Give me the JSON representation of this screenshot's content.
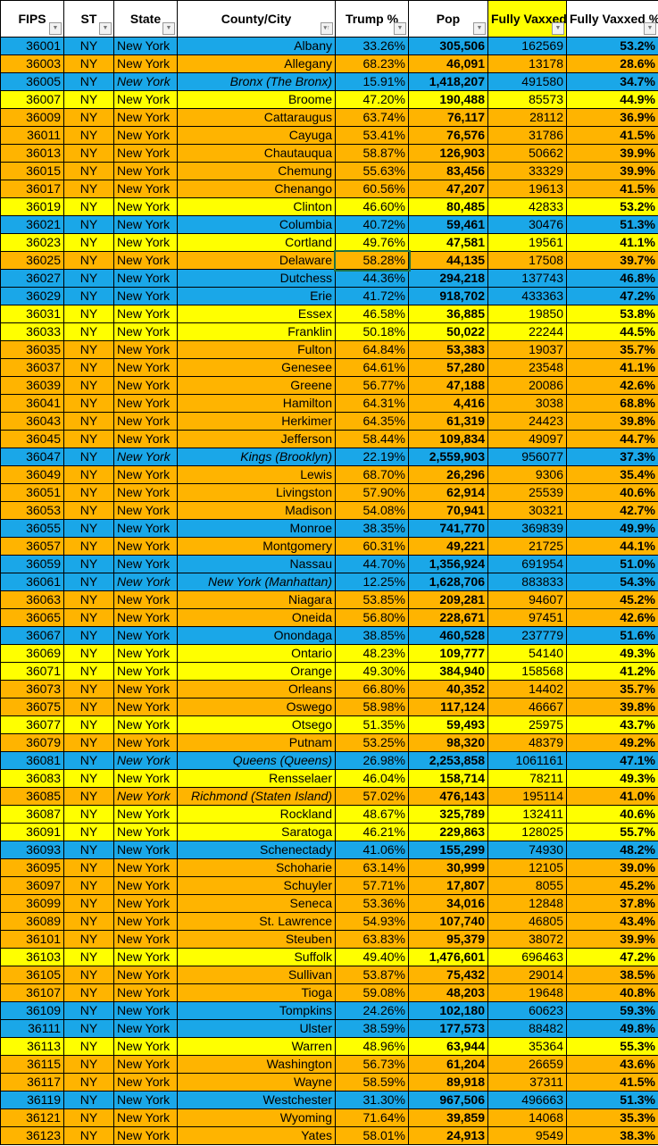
{
  "colors": {
    "b": "#1aa7e8",
    "y": "#ffff00",
    "o": "#ffb400"
  },
  "headers": [
    {
      "label": "FIPS",
      "icon": "filter-dropdown-icon"
    },
    {
      "label": "ST",
      "icon": "filter-dropdown-icon"
    },
    {
      "label": "State",
      "icon": "filter-dropdown-icon"
    },
    {
      "label": "County/City",
      "icon": "sort-ascending-icon"
    },
    {
      "label": "Trump %",
      "icon": "filter-dropdown-icon"
    },
    {
      "label": "Pop",
      "icon": "filter-dropdown-icon"
    },
    {
      "label": "Fully Vaxxed",
      "icon": "filter-dropdown-icon",
      "highlight": true
    },
    {
      "label": "Fully Vaxxed %",
      "icon": "filter-dropdown-icon"
    }
  ],
  "rows": [
    [
      "36001",
      "NY",
      "New York",
      "Albany",
      "33.26%",
      "305,506",
      "162569",
      "53.2%",
      "b",
      false
    ],
    [
      "36003",
      "NY",
      "New York",
      "Allegany",
      "68.23%",
      "46,091",
      "13178",
      "28.6%",
      "o",
      false
    ],
    [
      "36005",
      "NY",
      "New York",
      "Bronx  (The Bronx)",
      "15.91%",
      "1,418,207",
      "491580",
      "34.7%",
      "b",
      true
    ],
    [
      "36007",
      "NY",
      "New York",
      "Broome",
      "47.20%",
      "190,488",
      "85573",
      "44.9%",
      "y",
      false
    ],
    [
      "36009",
      "NY",
      "New York",
      "Cattaraugus",
      "63.74%",
      "76,117",
      "28112",
      "36.9%",
      "o",
      false
    ],
    [
      "36011",
      "NY",
      "New York",
      "Cayuga",
      "53.41%",
      "76,576",
      "31786",
      "41.5%",
      "o",
      false
    ],
    [
      "36013",
      "NY",
      "New York",
      "Chautauqua",
      "58.87%",
      "126,903",
      "50662",
      "39.9%",
      "o",
      false
    ],
    [
      "36015",
      "NY",
      "New York",
      "Chemung",
      "55.63%",
      "83,456",
      "33329",
      "39.9%",
      "o",
      false
    ],
    [
      "36017",
      "NY",
      "New York",
      "Chenango",
      "60.56%",
      "47,207",
      "19613",
      "41.5%",
      "o",
      false
    ],
    [
      "36019",
      "NY",
      "New York",
      "Clinton",
      "46.60%",
      "80,485",
      "42833",
      "53.2%",
      "y",
      false
    ],
    [
      "36021",
      "NY",
      "New York",
      "Columbia",
      "40.72%",
      "59,461",
      "30476",
      "51.3%",
      "b",
      false
    ],
    [
      "36023",
      "NY",
      "New York",
      "Cortland",
      "49.76%",
      "47,581",
      "19561",
      "41.1%",
      "y",
      false
    ],
    [
      "36025",
      "NY",
      "New York",
      "Delaware",
      "58.28%",
      "44,135",
      "17508",
      "39.7%",
      "o",
      false
    ],
    [
      "36027",
      "NY",
      "New York",
      "Dutchess",
      "44.36%",
      "294,218",
      "137743",
      "46.8%",
      "b",
      false
    ],
    [
      "36029",
      "NY",
      "New York",
      "Erie",
      "41.72%",
      "918,702",
      "433363",
      "47.2%",
      "b",
      false
    ],
    [
      "36031",
      "NY",
      "New York",
      "Essex",
      "46.58%",
      "36,885",
      "19850",
      "53.8%",
      "y",
      false
    ],
    [
      "36033",
      "NY",
      "New York",
      "Franklin",
      "50.18%",
      "50,022",
      "22244",
      "44.5%",
      "y",
      false
    ],
    [
      "36035",
      "NY",
      "New York",
      "Fulton",
      "64.84%",
      "53,383",
      "19037",
      "35.7%",
      "o",
      false
    ],
    [
      "36037",
      "NY",
      "New York",
      "Genesee",
      "64.61%",
      "57,280",
      "23548",
      "41.1%",
      "o",
      false
    ],
    [
      "36039",
      "NY",
      "New York",
      "Greene",
      "56.77%",
      "47,188",
      "20086",
      "42.6%",
      "o",
      false
    ],
    [
      "36041",
      "NY",
      "New York",
      "Hamilton",
      "64.31%",
      "4,416",
      "3038",
      "68.8%",
      "o",
      false
    ],
    [
      "36043",
      "NY",
      "New York",
      "Herkimer",
      "64.35%",
      "61,319",
      "24423",
      "39.8%",
      "o",
      false
    ],
    [
      "36045",
      "NY",
      "New York",
      "Jefferson",
      "58.44%",
      "109,834",
      "49097",
      "44.7%",
      "o",
      false
    ],
    [
      "36047",
      "NY",
      "New York",
      "Kings  (Brooklyn)",
      "22.19%",
      "2,559,903",
      "956077",
      "37.3%",
      "b",
      true
    ],
    [
      "36049",
      "NY",
      "New York",
      "Lewis",
      "68.70%",
      "26,296",
      "9306",
      "35.4%",
      "o",
      false
    ],
    [
      "36051",
      "NY",
      "New York",
      "Livingston",
      "57.90%",
      "62,914",
      "25539",
      "40.6%",
      "o",
      false
    ],
    [
      "36053",
      "NY",
      "New York",
      "Madison",
      "54.08%",
      "70,941",
      "30321",
      "42.7%",
      "o",
      false
    ],
    [
      "36055",
      "NY",
      "New York",
      "Monroe",
      "38.35%",
      "741,770",
      "369839",
      "49.9%",
      "b",
      false
    ],
    [
      "36057",
      "NY",
      "New York",
      "Montgomery",
      "60.31%",
      "49,221",
      "21725",
      "44.1%",
      "o",
      false
    ],
    [
      "36059",
      "NY",
      "New York",
      "Nassau",
      "44.70%",
      "1,356,924",
      "691954",
      "51.0%",
      "b",
      false
    ],
    [
      "36061",
      "NY",
      "New York",
      "New York  (Manhattan)",
      "12.25%",
      "1,628,706",
      "883833",
      "54.3%",
      "b",
      true
    ],
    [
      "36063",
      "NY",
      "New York",
      "Niagara",
      "53.85%",
      "209,281",
      "94607",
      "45.2%",
      "o",
      false
    ],
    [
      "36065",
      "NY",
      "New York",
      "Oneida",
      "56.80%",
      "228,671",
      "97451",
      "42.6%",
      "o",
      false
    ],
    [
      "36067",
      "NY",
      "New York",
      "Onondaga",
      "38.85%",
      "460,528",
      "237779",
      "51.6%",
      "b",
      false
    ],
    [
      "36069",
      "NY",
      "New York",
      "Ontario",
      "48.23%",
      "109,777",
      "54140",
      "49.3%",
      "y",
      false
    ],
    [
      "36071",
      "NY",
      "New York",
      "Orange",
      "49.30%",
      "384,940",
      "158568",
      "41.2%",
      "y",
      false
    ],
    [
      "36073",
      "NY",
      "New York",
      "Orleans",
      "66.80%",
      "40,352",
      "14402",
      "35.7%",
      "o",
      false
    ],
    [
      "36075",
      "NY",
      "New York",
      "Oswego",
      "58.98%",
      "117,124",
      "46667",
      "39.8%",
      "o",
      false
    ],
    [
      "36077",
      "NY",
      "New York",
      "Otsego",
      "51.35%",
      "59,493",
      "25975",
      "43.7%",
      "y",
      false
    ],
    [
      "36079",
      "NY",
      "New York",
      "Putnam",
      "53.25%",
      "98,320",
      "48379",
      "49.2%",
      "o",
      false
    ],
    [
      "36081",
      "NY",
      "New York",
      "Queens  (Queens)",
      "26.98%",
      "2,253,858",
      "1061161",
      "47.1%",
      "b",
      true
    ],
    [
      "36083",
      "NY",
      "New York",
      "Rensselaer",
      "46.04%",
      "158,714",
      "78211",
      "49.3%",
      "y",
      false
    ],
    [
      "36085",
      "NY",
      "New York",
      "Richmond  (Staten Island)",
      "57.02%",
      "476,143",
      "195114",
      "41.0%",
      "o",
      true
    ],
    [
      "36087",
      "NY",
      "New York",
      "Rockland",
      "48.67%",
      "325,789",
      "132411",
      "40.6%",
      "y",
      false
    ],
    [
      "36091",
      "NY",
      "New York",
      "Saratoga",
      "46.21%",
      "229,863",
      "128025",
      "55.7%",
      "y",
      false
    ],
    [
      "36093",
      "NY",
      "New York",
      "Schenectady",
      "41.06%",
      "155,299",
      "74930",
      "48.2%",
      "b",
      false
    ],
    [
      "36095",
      "NY",
      "New York",
      "Schoharie",
      "63.14%",
      "30,999",
      "12105",
      "39.0%",
      "o",
      false
    ],
    [
      "36097",
      "NY",
      "New York",
      "Schuyler",
      "57.71%",
      "17,807",
      "8055",
      "45.2%",
      "o",
      false
    ],
    [
      "36099",
      "NY",
      "New York",
      "Seneca",
      "53.36%",
      "34,016",
      "12848",
      "37.8%",
      "o",
      false
    ],
    [
      "36089",
      "NY",
      "New York",
      "St. Lawrence",
      "54.93%",
      "107,740",
      "46805",
      "43.4%",
      "o",
      false
    ],
    [
      "36101",
      "NY",
      "New York",
      "Steuben",
      "63.83%",
      "95,379",
      "38072",
      "39.9%",
      "o",
      false
    ],
    [
      "36103",
      "NY",
      "New York",
      "Suffolk",
      "49.40%",
      "1,476,601",
      "696463",
      "47.2%",
      "y",
      false
    ],
    [
      "36105",
      "NY",
      "New York",
      "Sullivan",
      "53.87%",
      "75,432",
      "29014",
      "38.5%",
      "o",
      false
    ],
    [
      "36107",
      "NY",
      "New York",
      "Tioga",
      "59.08%",
      "48,203",
      "19648",
      "40.8%",
      "o",
      false
    ],
    [
      "36109",
      "NY",
      "New York",
      "Tompkins",
      "24.26%",
      "102,180",
      "60623",
      "59.3%",
      "b",
      false
    ],
    [
      "36111",
      "NY",
      "New York",
      "Ulster",
      "38.59%",
      "177,573",
      "88482",
      "49.8%",
      "b",
      false
    ],
    [
      "36113",
      "NY",
      "New York",
      "Warren",
      "48.96%",
      "63,944",
      "35364",
      "55.3%",
      "y",
      false
    ],
    [
      "36115",
      "NY",
      "New York",
      "Washington",
      "56.73%",
      "61,204",
      "26659",
      "43.6%",
      "o",
      false
    ],
    [
      "36117",
      "NY",
      "New York",
      "Wayne",
      "58.59%",
      "89,918",
      "37311",
      "41.5%",
      "o",
      false
    ],
    [
      "36119",
      "NY",
      "New York",
      "Westchester",
      "31.30%",
      "967,506",
      "496663",
      "51.3%",
      "b",
      false
    ],
    [
      "36121",
      "NY",
      "New York",
      "Wyoming",
      "71.64%",
      "39,859",
      "14068",
      "35.3%",
      "o",
      false
    ],
    [
      "36123",
      "NY",
      "New York",
      "Yates",
      "58.01%",
      "24,913",
      "9549",
      "38.3%",
      "o",
      false
    ]
  ]
}
